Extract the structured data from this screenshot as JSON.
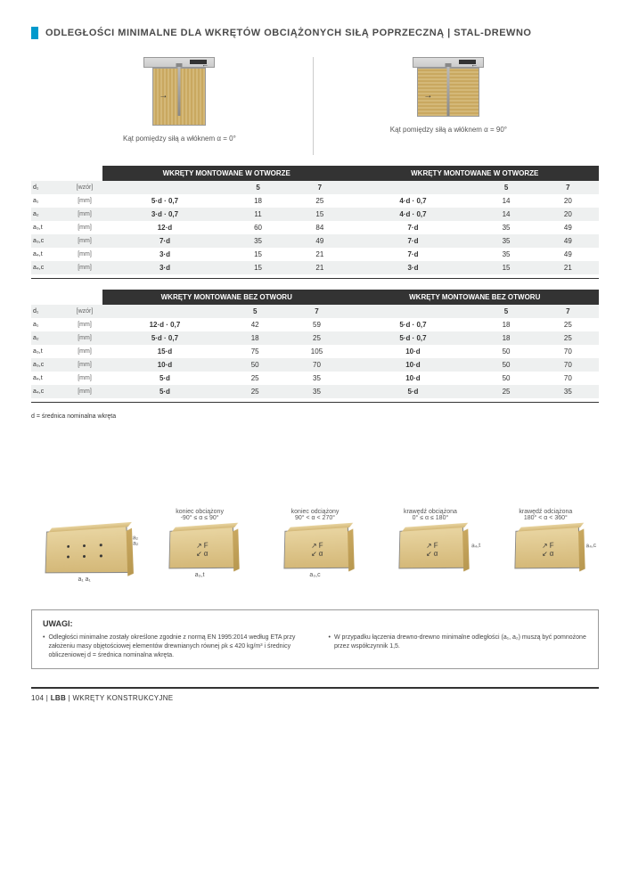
{
  "header": "ODLEGŁOŚCI MINIMALNE DLA WKRĘTÓW OBCIĄŻONYCH SIŁĄ POPRZECZNĄ | STAL-DREWNO",
  "diagrams": {
    "left_caption": "Kąt pomiędzy siłą a włóknem α = 0°",
    "right_caption": "Kąt pomiędzy siłą a włóknem α = 90°"
  },
  "table1": {
    "header_left": "WKRĘTY MONTOWANE W OTWORZE",
    "header_right": "WKRĘTY MONTOWANE W OTWORZE",
    "d1_label": "d₁",
    "unit_wzor": "[wzór]",
    "unit_mm": "[mm]",
    "col5": "5",
    "col7": "7",
    "rows": [
      {
        "n": "a₁",
        "f1": "5·d · 0,7",
        "v5": "18",
        "v7": "25",
        "f2": "4·d · 0,7",
        "w5": "14",
        "w7": "20",
        "grey": false
      },
      {
        "n": "a₂",
        "f1": "3·d · 0,7",
        "v5": "11",
        "v7": "15",
        "f2": "4·d · 0,7",
        "w5": "14",
        "w7": "20",
        "grey": true
      },
      {
        "n": "a₃,t",
        "f1": "12·d",
        "v5": "60",
        "v7": "84",
        "f2": "7·d",
        "w5": "35",
        "w7": "49",
        "grey": false
      },
      {
        "n": "a₃,c",
        "f1": "7·d",
        "v5": "35",
        "v7": "49",
        "f2": "7·d",
        "w5": "35",
        "w7": "49",
        "grey": true
      },
      {
        "n": "a₄,t",
        "f1": "3·d",
        "v5": "15",
        "v7": "21",
        "f2": "7·d",
        "w5": "35",
        "w7": "49",
        "grey": false
      },
      {
        "n": "a₄,c",
        "f1": "3·d",
        "v5": "15",
        "v7": "21",
        "f2": "3·d",
        "w5": "15",
        "w7": "21",
        "grey": true
      }
    ]
  },
  "table2": {
    "header_left": "WKRĘTY MONTOWANE BEZ OTWORU",
    "header_right": "WKRĘTY MONTOWANE BEZ OTWORU",
    "rows": [
      {
        "n": "a₁",
        "f1": "12·d · 0,7",
        "v5": "42",
        "v7": "59",
        "f2": "5·d · 0,7",
        "w5": "18",
        "w7": "25",
        "grey": false
      },
      {
        "n": "a₂",
        "f1": "5·d · 0,7",
        "v5": "18",
        "v7": "25",
        "f2": "5·d · 0,7",
        "w5": "18",
        "w7": "25",
        "grey": true
      },
      {
        "n": "a₃,t",
        "f1": "15·d",
        "v5": "75",
        "v7": "105",
        "f2": "10·d",
        "w5": "50",
        "w7": "70",
        "grey": false
      },
      {
        "n": "a₃,c",
        "f1": "10·d",
        "v5": "50",
        "v7": "70",
        "f2": "10·d",
        "w5": "50",
        "w7": "70",
        "grey": true
      },
      {
        "n": "a₄,t",
        "f1": "5·d",
        "v5": "25",
        "v7": "35",
        "f2": "10·d",
        "w5": "50",
        "w7": "70",
        "grey": false
      },
      {
        "n": "a₄,c",
        "f1": "5·d",
        "v5": "25",
        "v7": "35",
        "f2": "5·d",
        "w5": "25",
        "w7": "35",
        "grey": true
      }
    ]
  },
  "footnote": "d = średnica nominalna wkręta",
  "bottom": {
    "items": [
      {
        "label": "",
        "sub": "a₁  a₁",
        "side": "a₂\na₂"
      },
      {
        "label": "koniec obciążony\n-90° ≤ α ≤ 90°",
        "sub": "a₃,t"
      },
      {
        "label": "koniec odciążony\n90° < α < 270°",
        "sub": "a₃,c"
      },
      {
        "label": "krawędź obciążona\n0° ≤ α ≤ 180°",
        "sub": "",
        "side": "a₄,t"
      },
      {
        "label": "krawędź odciążona\n180° < α < 360°",
        "sub": "",
        "side": "a₄,c"
      }
    ]
  },
  "uwagi": {
    "title": "UWAGI:",
    "left": "Odległości minimalne zostały określone zgodnie z normą EN 1995:2014 według ETA przy założeniu masy objętościowej elementów drewnianych równej ρk ≤ 420 kg/m³ i średnicy obliczeniowej d = średnica nominalna wkręta.",
    "right": "W przypadku łączenia drewno-drewno minimalne odległości (a₁, a₂) muszą być pomnożone przez współczynnik 1,5."
  },
  "footer": {
    "page": "104",
    "sep": " | ",
    "brand": "LBB",
    "cat": " | WKRĘTY KONSTRUKCYJNE"
  }
}
